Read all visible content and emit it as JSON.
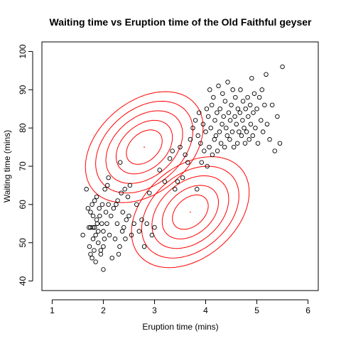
{
  "chart_data": {
    "type": "scatter",
    "title": "Waiting time vs Eruption time of the Old Faithful geyser",
    "xlabel": "Eruption time (mins)",
    "ylabel": "Waiting time (mins)",
    "xlim": [
      0.8,
      6.2
    ],
    "ylim": [
      37.5,
      102.5
    ],
    "xticks": [
      1,
      2,
      3,
      4,
      5,
      6
    ],
    "yticks": [
      40,
      50,
      60,
      70,
      80,
      90,
      100
    ],
    "grid": false,
    "points_color": "#000000",
    "contour_color": "#ff0000",
    "points": [
      [
        1.6,
        52
      ],
      [
        1.67,
        64
      ],
      [
        1.7,
        59
      ],
      [
        1.72,
        54
      ],
      [
        1.73,
        49
      ],
      [
        1.75,
        58
      ],
      [
        1.75,
        47
      ],
      [
        1.75,
        54
      ],
      [
        1.78,
        60
      ],
      [
        1.78,
        46
      ],
      [
        1.8,
        51
      ],
      [
        1.8,
        57
      ],
      [
        1.8,
        54
      ],
      [
        1.82,
        48
      ],
      [
        1.83,
        54
      ],
      [
        1.83,
        61
      ],
      [
        1.85,
        45
      ],
      [
        1.85,
        52
      ],
      [
        1.87,
        56
      ],
      [
        1.87,
        62
      ],
      [
        1.88,
        55
      ],
      [
        1.9,
        53
      ],
      [
        1.9,
        50
      ],
      [
        1.92,
        59
      ],
      [
        1.93,
        57
      ],
      [
        1.95,
        47
      ],
      [
        1.95,
        48
      ],
      [
        1.97,
        55
      ],
      [
        1.98,
        60
      ],
      [
        2.0,
        53
      ],
      [
        2.0,
        49
      ],
      [
        2.0,
        43
      ],
      [
        2.02,
        51
      ],
      [
        2.03,
        64
      ],
      [
        2.05,
        58
      ],
      [
        2.07,
        55
      ],
      [
        2.08,
        65
      ],
      [
        2.1,
        67
      ],
      [
        2.1,
        60
      ],
      [
        2.12,
        52
      ],
      [
        2.15,
        57
      ],
      [
        2.17,
        46
      ],
      [
        2.2,
        59
      ],
      [
        2.23,
        51
      ],
      [
        2.25,
        60
      ],
      [
        2.27,
        55
      ],
      [
        2.28,
        61
      ],
      [
        2.3,
        47
      ],
      [
        2.32,
        49
      ],
      [
        2.33,
        71
      ],
      [
        2.35,
        63
      ],
      [
        2.37,
        53
      ],
      [
        2.38,
        58
      ],
      [
        2.4,
        54
      ],
      [
        2.42,
        64
      ],
      [
        2.43,
        51
      ],
      [
        2.45,
        56
      ],
      [
        2.48,
        62
      ],
      [
        2.5,
        57
      ],
      [
        2.52,
        65
      ],
      [
        2.55,
        52
      ],
      [
        2.6,
        55
      ],
      [
        2.65,
        60
      ],
      [
        2.7,
        53
      ],
      [
        2.75,
        56
      ],
      [
        2.8,
        49
      ],
      [
        2.85,
        55
      ],
      [
        2.9,
        63
      ],
      [
        2.95,
        52
      ],
      [
        3.0,
        54
      ],
      [
        3.1,
        69
      ],
      [
        3.2,
        66
      ],
      [
        3.3,
        72
      ],
      [
        3.35,
        74
      ],
      [
        3.4,
        64
      ],
      [
        3.45,
        66
      ],
      [
        3.5,
        75
      ],
      [
        3.55,
        67
      ],
      [
        3.6,
        73
      ],
      [
        3.65,
        71
      ],
      [
        3.7,
        77
      ],
      [
        3.75,
        80
      ],
      [
        3.8,
        82
      ],
      [
        3.83,
        64
      ],
      [
        3.85,
        78
      ],
      [
        3.87,
        84
      ],
      [
        3.9,
        76
      ],
      [
        3.92,
        71
      ],
      [
        3.95,
        81
      ],
      [
        3.97,
        74
      ],
      [
        4.0,
        79
      ],
      [
        4.02,
        85
      ],
      [
        4.03,
        70
      ],
      [
        4.05,
        83
      ],
      [
        4.07,
        75
      ],
      [
        4.08,
        90
      ],
      [
        4.1,
        80
      ],
      [
        4.12,
        86
      ],
      [
        4.13,
        73
      ],
      [
        4.15,
        88
      ],
      [
        4.17,
        77
      ],
      [
        4.18,
        82
      ],
      [
        4.2,
        78
      ],
      [
        4.22,
        84
      ],
      [
        4.23,
        74
      ],
      [
        4.25,
        91
      ],
      [
        4.27,
        79
      ],
      [
        4.28,
        85
      ],
      [
        4.3,
        76
      ],
      [
        4.32,
        81
      ],
      [
        4.33,
        89
      ],
      [
        4.35,
        83
      ],
      [
        4.37,
        75
      ],
      [
        4.38,
        87
      ],
      [
        4.4,
        80
      ],
      [
        4.42,
        78
      ],
      [
        4.43,
        92
      ],
      [
        4.45,
        84
      ],
      [
        4.47,
        77
      ],
      [
        4.48,
        82
      ],
      [
        4.5,
        86
      ],
      [
        4.52,
        79
      ],
      [
        4.53,
        90
      ],
      [
        4.55,
        75
      ],
      [
        4.57,
        83
      ],
      [
        4.58,
        88
      ],
      [
        4.6,
        81
      ],
      [
        4.62,
        76
      ],
      [
        4.63,
        85
      ],
      [
        4.65,
        79
      ],
      [
        4.67,
        84
      ],
      [
        4.68,
        90
      ],
      [
        4.7,
        78
      ],
      [
        4.72,
        82
      ],
      [
        4.73,
        87
      ],
      [
        4.75,
        80
      ],
      [
        4.77,
        76
      ],
      [
        4.78,
        85
      ],
      [
        4.8,
        79
      ],
      [
        4.82,
        88
      ],
      [
        4.83,
        83
      ],
      [
        4.85,
        77
      ],
      [
        4.87,
        86
      ],
      [
        4.88,
        81
      ],
      [
        4.9,
        93
      ],
      [
        4.92,
        78
      ],
      [
        4.93,
        84
      ],
      [
        4.95,
        89
      ],
      [
        4.97,
        80
      ],
      [
        5.0,
        85
      ],
      [
        5.02,
        76
      ],
      [
        5.05,
        88
      ],
      [
        5.08,
        82
      ],
      [
        5.1,
        90
      ],
      [
        5.12,
        79
      ],
      [
        5.15,
        86
      ],
      [
        5.18,
        94
      ],
      [
        5.2,
        81
      ],
      [
        5.25,
        77
      ],
      [
        5.3,
        86
      ],
      [
        5.35,
        74
      ],
      [
        5.4,
        83
      ],
      [
        5.45,
        76
      ],
      [
        5.5,
        96
      ]
    ],
    "contours": [
      {
        "center": [
          2.8,
          75
        ],
        "ellipses": [
          [
            0.35,
            4.5,
            0.36
          ],
          [
            0.55,
            7.0,
            0.36
          ],
          [
            0.75,
            9.5,
            0.36
          ],
          [
            0.95,
            12.0,
            0.36
          ],
          [
            1.15,
            14.5,
            0.36
          ]
        ]
      },
      {
        "center": [
          3.7,
          58
        ],
        "ellipses": [
          [
            0.35,
            4.5,
            0.36
          ],
          [
            0.55,
            7.0,
            0.36
          ],
          [
            0.75,
            9.5,
            0.36
          ],
          [
            0.95,
            12.0,
            0.36
          ],
          [
            1.15,
            14.5,
            0.36
          ]
        ]
      }
    ]
  }
}
